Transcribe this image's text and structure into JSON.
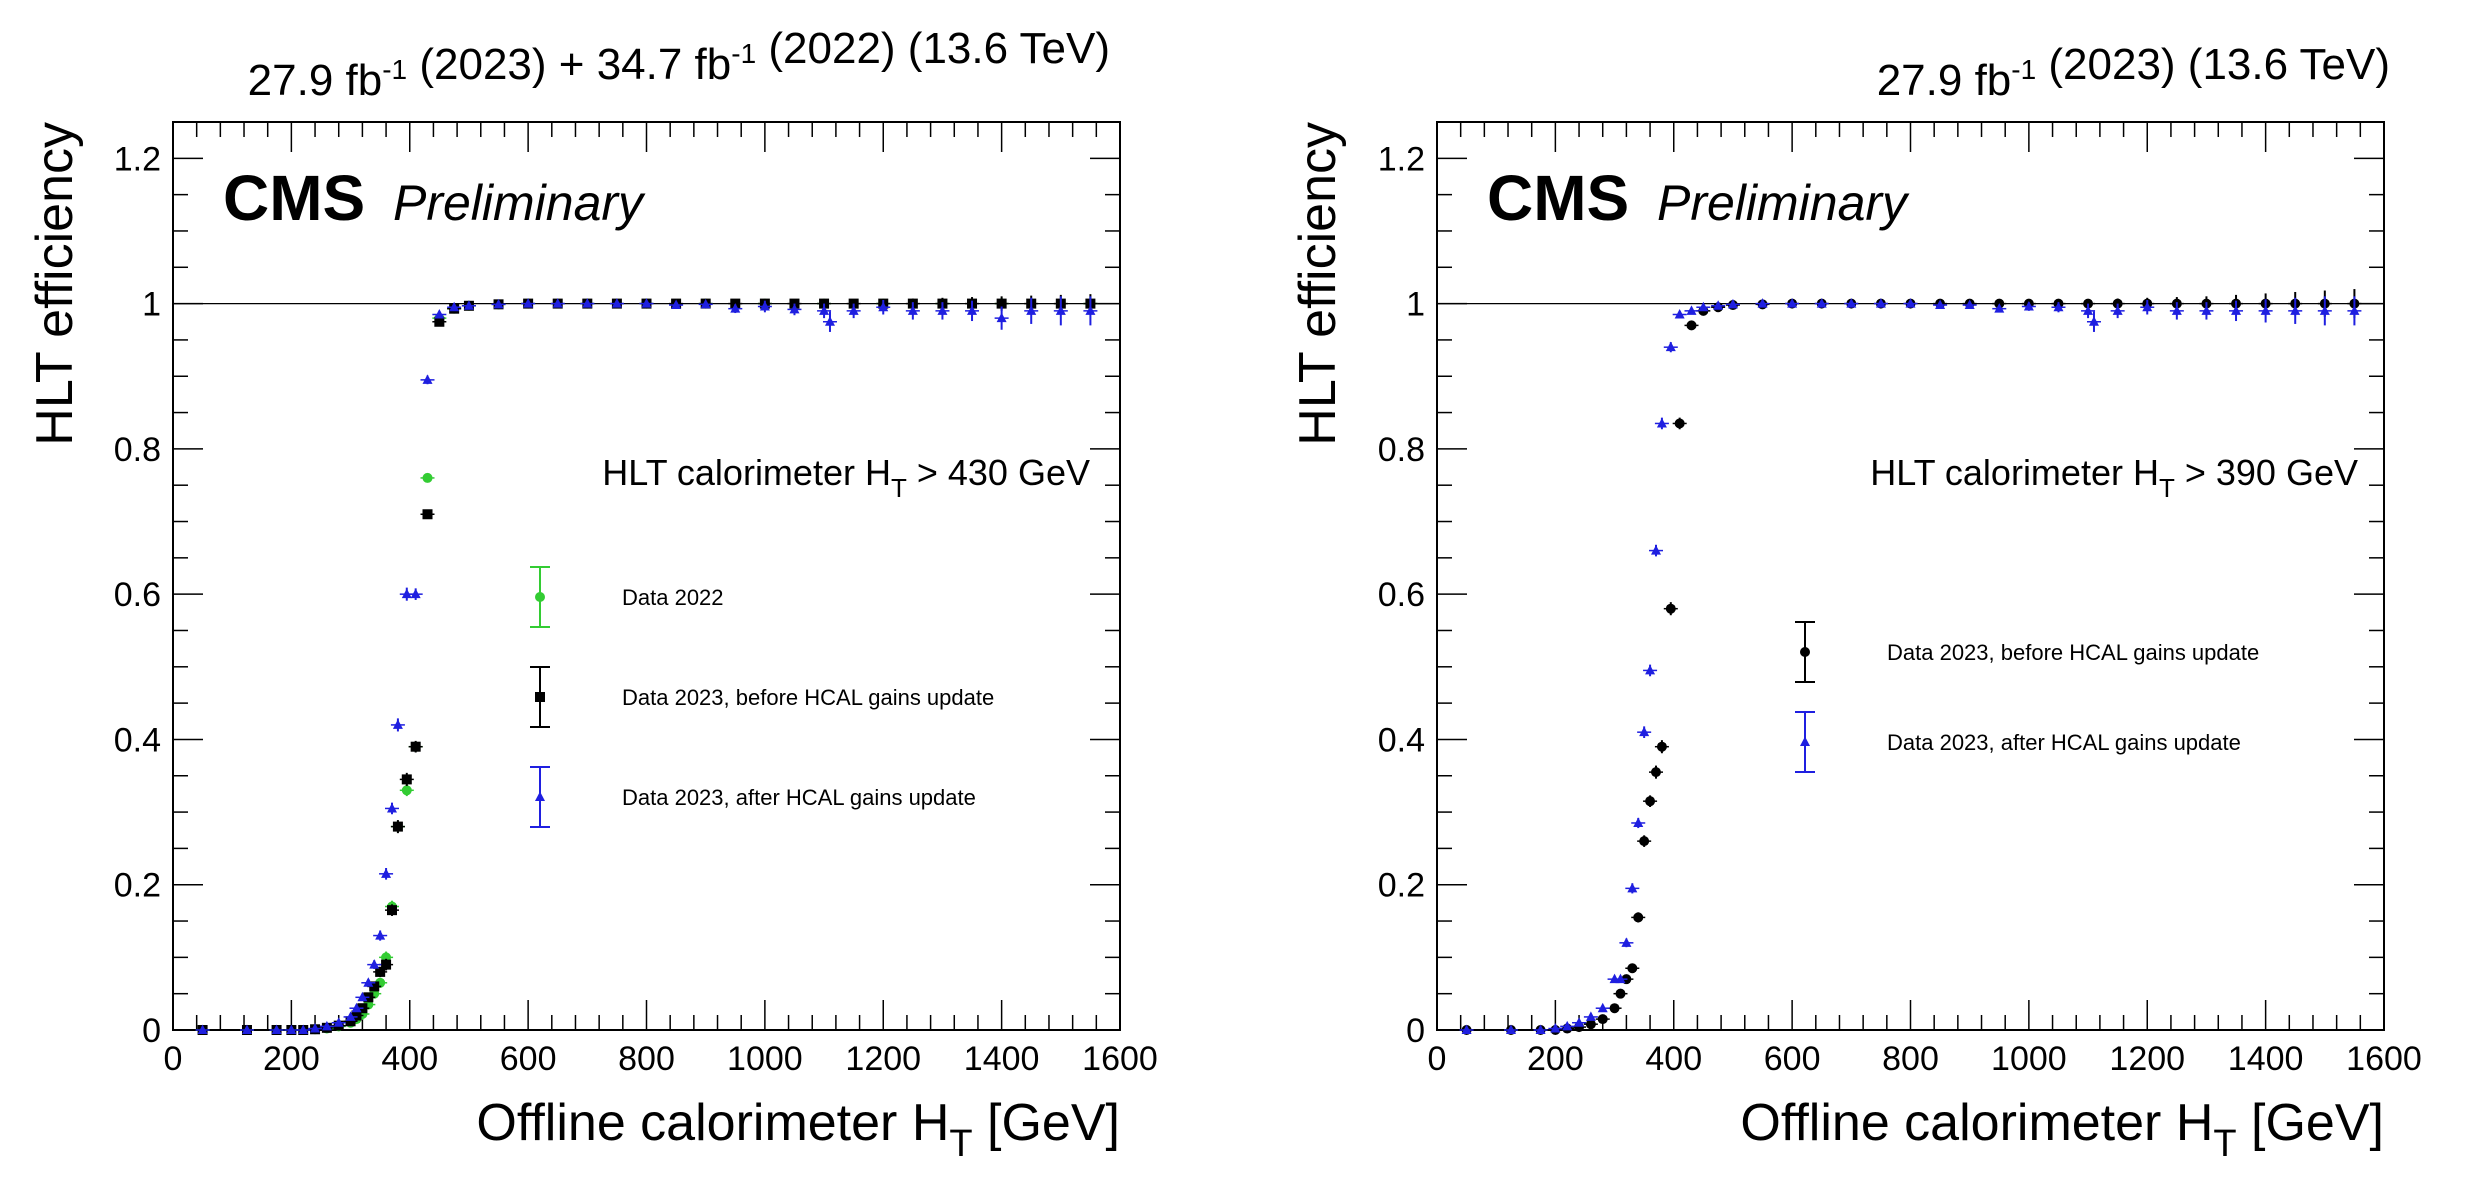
{
  "chart_data": [
    {
      "type": "scatter",
      "lumi_parts": [
        {
          "text": "27.9 fb",
          "sup": "-1"
        },
        {
          "text": " (2023) + 34.7 fb",
          "sup": "-1"
        },
        {
          "text": " (2022) (13.6 TeV)",
          "sup": ""
        }
      ],
      "cms_label": "CMS",
      "preliminary_label": "Preliminary",
      "trigger_label": {
        "main": "HLT calorimeter H",
        "sub": "T",
        "rest": " > 430 GeV"
      },
      "xlabel": {
        "main": "Offline calorimeter H",
        "sub": "T",
        "rest": " [GeV]"
      },
      "ylabel": "HLT efficiency",
      "xlim": [
        0,
        1600
      ],
      "ylim": [
        0,
        1.25
      ],
      "xticks": [
        0,
        200,
        400,
        600,
        800,
        1000,
        1200,
        1400,
        1600
      ],
      "yticks": [
        0,
        0.2,
        0.4,
        0.6,
        0.8,
        1
      ],
      "yticklabels": [
        "0",
        "0.2",
        "0.4",
        "0.6",
        "0.8",
        "1"
      ],
      "extra_ytick": {
        "value": 1.2,
        "label": "1.2"
      },
      "legend": [
        {
          "label": "Data 2022",
          "color": "#33cc33",
          "marker": "circle"
        },
        {
          "label": "Data 2023, before HCAL gains update",
          "color": "#000000",
          "marker": "square"
        },
        {
          "label": "Data 2023, after HCAL gains update",
          "color": "#1f1fe0",
          "marker": "triangle"
        }
      ],
      "series": [
        {
          "name": "Data 2022",
          "color": "#33cc33",
          "marker": "circle",
          "x": [
            50,
            125,
            175,
            200,
            220,
            240,
            260,
            280,
            300,
            310,
            320,
            330,
            340,
            350,
            360,
            370,
            380,
            395,
            410,
            430,
            450,
            475,
            500,
            550,
            600,
            700,
            800,
            900,
            1000,
            1100,
            1200,
            1300,
            1400,
            1550
          ],
          "y": [
            0,
            0,
            0,
            0,
            0,
            0.001,
            0.002,
            0.005,
            0.01,
            0.015,
            0.022,
            0.035,
            0.05,
            0.065,
            0.1,
            0.17,
            0.28,
            0.33,
            0.39,
            0.76,
            0.98,
            0.993,
            0.997,
            0.999,
            1,
            1,
            1,
            1,
            1,
            1,
            1,
            1,
            1,
            1
          ],
          "err": [
            0,
            0,
            0,
            0,
            0,
            0,
            0,
            0.002,
            0.003,
            0.003,
            0.004,
            0.005,
            0.006,
            0.007,
            0.008,
            0.008,
            0.008,
            0.008,
            0.007,
            0.005,
            0.003,
            0.002,
            0.002,
            0.001,
            0.001,
            0.001,
            0.001,
            0.002,
            0.003,
            0.004,
            0.005,
            0.006,
            0.008,
            0.01
          ]
        },
        {
          "name": "Data 2023, before HCAL gains update",
          "color": "#000000",
          "marker": "square",
          "x": [
            50,
            125,
            175,
            200,
            220,
            240,
            260,
            280,
            300,
            310,
            320,
            330,
            340,
            350,
            360,
            370,
            380,
            395,
            410,
            430,
            450,
            475,
            500,
            550,
            600,
            650,
            700,
            750,
            800,
            850,
            900,
            950,
            1000,
            1050,
            1100,
            1150,
            1200,
            1250,
            1300,
            1350,
            1400,
            1450,
            1500,
            1550
          ],
          "y": [
            0,
            0,
            0,
            0,
            0,
            0.001,
            0.003,
            0.006,
            0.012,
            0.02,
            0.03,
            0.045,
            0.06,
            0.08,
            0.09,
            0.165,
            0.28,
            0.345,
            0.39,
            0.71,
            0.975,
            0.993,
            0.997,
            0.999,
            1,
            1,
            1,
            1,
            1,
            1,
            1,
            1,
            1,
            1,
            1,
            1,
            1,
            1,
            1,
            1,
            1,
            1,
            1,
            1
          ],
          "err": [
            0,
            0,
            0,
            0,
            0,
            0,
            0.001,
            0.002,
            0.003,
            0.003,
            0.004,
            0.005,
            0.006,
            0.007,
            0.008,
            0.008,
            0.009,
            0.009,
            0.008,
            0.006,
            0.005,
            0.003,
            0.002,
            0.001,
            0.001,
            0.001,
            0.001,
            0.001,
            0.001,
            0.001,
            0.002,
            0.002,
            0.003,
            0.004,
            0.005,
            0.006,
            0.006,
            0.007,
            0.008,
            0.009,
            0.01,
            0.011,
            0.012,
            0.013
          ]
        },
        {
          "name": "Data 2023, after HCAL gains update",
          "color": "#1f1fe0",
          "marker": "triangle",
          "x": [
            50,
            125,
            175,
            200,
            220,
            240,
            260,
            280,
            300,
            310,
            320,
            330,
            340,
            350,
            360,
            370,
            380,
            395,
            410,
            430,
            450,
            475,
            500,
            550,
            600,
            650,
            700,
            750,
            800,
            850,
            900,
            950,
            1000,
            1050,
            1100,
            1110,
            1150,
            1200,
            1250,
            1300,
            1350,
            1400,
            1450,
            1500,
            1550
          ],
          "y": [
            0,
            0,
            0,
            0,
            0,
            0.002,
            0.005,
            0.01,
            0.018,
            0.03,
            0.045,
            0.065,
            0.09,
            0.13,
            0.215,
            0.305,
            0.42,
            0.6,
            0.6,
            0.895,
            0.985,
            0.995,
            0.997,
            0.999,
            1,
            1,
            1,
            1,
            1,
            0.998,
            0.999,
            0.993,
            0.996,
            0.992,
            0.99,
            0.975,
            0.99,
            0.995,
            0.99,
            0.99,
            0.99,
            0.98,
            0.99,
            0.99,
            0.99
          ],
          "err": [
            0,
            0,
            0,
            0,
            0,
            0.001,
            0.002,
            0.003,
            0.003,
            0.004,
            0.004,
            0.005,
            0.006,
            0.007,
            0.008,
            0.008,
            0.009,
            0.009,
            0.008,
            0.006,
            0.004,
            0.003,
            0.002,
            0.001,
            0.001,
            0.001,
            0.001,
            0.002,
            0.002,
            0.004,
            0.004,
            0.006,
            0.008,
            0.008,
            0.01,
            0.014,
            0.01,
            0.01,
            0.012,
            0.012,
            0.014,
            0.016,
            0.018,
            0.02,
            0.02
          ]
        }
      ]
    },
    {
      "type": "scatter",
      "lumi_parts": [
        {
          "text": "27.9 fb",
          "sup": "-1"
        },
        {
          "text": " (2023) (13.6 TeV)",
          "sup": ""
        }
      ],
      "cms_label": "CMS",
      "preliminary_label": "Preliminary",
      "trigger_label": {
        "main": "HLT calorimeter H",
        "sub": "T",
        "rest": " > 390 GeV"
      },
      "xlabel": {
        "main": "Offline calorimeter H",
        "sub": "T",
        "rest": " [GeV]"
      },
      "ylabel": "HLT efficiency",
      "xlim": [
        0,
        1600
      ],
      "ylim": [
        0,
        1.25
      ],
      "xticks": [
        0,
        200,
        400,
        600,
        800,
        1000,
        1200,
        1400,
        1600
      ],
      "yticks": [
        0,
        0.2,
        0.4,
        0.6,
        0.8,
        1
      ],
      "yticklabels": [
        "0",
        "0.2",
        "0.4",
        "0.6",
        "0.8",
        "1"
      ],
      "extra_ytick": {
        "value": 1.2,
        "label": "1.2"
      },
      "legend": [
        {
          "label": "Data 2023, before HCAL gains update",
          "color": "#000000",
          "marker": "circle"
        },
        {
          "label": "Data 2023, after HCAL gains update",
          "color": "#1f1fe0",
          "marker": "triangle"
        }
      ],
      "series": [
        {
          "name": "Data 2023, before HCAL gains update",
          "color": "#000000",
          "marker": "circle",
          "x": [
            50,
            125,
            175,
            200,
            220,
            240,
            260,
            280,
            300,
            310,
            320,
            330,
            340,
            350,
            360,
            370,
            380,
            395,
            410,
            430,
            450,
            475,
            500,
            550,
            600,
            650,
            700,
            750,
            800,
            850,
            900,
            950,
            1000,
            1050,
            1100,
            1150,
            1200,
            1250,
            1300,
            1350,
            1400,
            1450,
            1500,
            1550
          ],
          "y": [
            0,
            0,
            0,
            0,
            0.002,
            0.004,
            0.008,
            0.015,
            0.03,
            0.05,
            0.07,
            0.085,
            0.155,
            0.26,
            0.315,
            0.355,
            0.39,
            0.58,
            0.835,
            0.97,
            0.99,
            0.995,
            0.998,
            0.999,
            1,
            1,
            1,
            1,
            1,
            1,
            1,
            1,
            1,
            1,
            1,
            1,
            1,
            1,
            1,
            1,
            1,
            1,
            1,
            1
          ],
          "err": [
            0,
            0,
            0,
            0,
            0,
            0.001,
            0.002,
            0.003,
            0.004,
            0.005,
            0.006,
            0.006,
            0.007,
            0.008,
            0.008,
            0.009,
            0.009,
            0.009,
            0.008,
            0.005,
            0.004,
            0.003,
            0.002,
            0.001,
            0.001,
            0.001,
            0.001,
            0.001,
            0.001,
            0.002,
            0.002,
            0.003,
            0.004,
            0.005,
            0.006,
            0.007,
            0.008,
            0.009,
            0.01,
            0.012,
            0.014,
            0.016,
            0.018,
            0.02
          ]
        },
        {
          "name": "Data 2023, after HCAL gains update",
          "color": "#1f1fe0",
          "marker": "triangle",
          "x": [
            50,
            125,
            175,
            200,
            220,
            240,
            260,
            280,
            300,
            310,
            320,
            330,
            340,
            350,
            360,
            370,
            380,
            395,
            410,
            430,
            450,
            475,
            500,
            550,
            600,
            650,
            700,
            750,
            800,
            850,
            900,
            950,
            1000,
            1050,
            1100,
            1110,
            1150,
            1200,
            1250,
            1300,
            1350,
            1400,
            1450,
            1500,
            1550
          ],
          "y": [
            0,
            0,
            0,
            0.002,
            0.005,
            0.01,
            0.018,
            0.03,
            0.07,
            0.07,
            0.12,
            0.195,
            0.285,
            0.41,
            0.495,
            0.66,
            0.835,
            0.94,
            0.985,
            0.99,
            0.995,
            0.997,
            0.999,
            1,
            1,
            1,
            1,
            1,
            1,
            0.998,
            0.998,
            0.993,
            0.996,
            0.995,
            0.99,
            0.975,
            0.99,
            0.995,
            0.99,
            0.99,
            0.99,
            0.99,
            0.99,
            0.99,
            0.99
          ],
          "err": [
            0,
            0,
            0,
            0.001,
            0.002,
            0.003,
            0.003,
            0.004,
            0.005,
            0.005,
            0.006,
            0.007,
            0.007,
            0.008,
            0.008,
            0.008,
            0.008,
            0.007,
            0.005,
            0.004,
            0.003,
            0.002,
            0.002,
            0.001,
            0.001,
            0.001,
            0.001,
            0.002,
            0.002,
            0.003,
            0.004,
            0.005,
            0.006,
            0.007,
            0.01,
            0.014,
            0.01,
            0.01,
            0.012,
            0.012,
            0.014,
            0.016,
            0.018,
            0.02,
            0.02
          ]
        }
      ]
    }
  ]
}
